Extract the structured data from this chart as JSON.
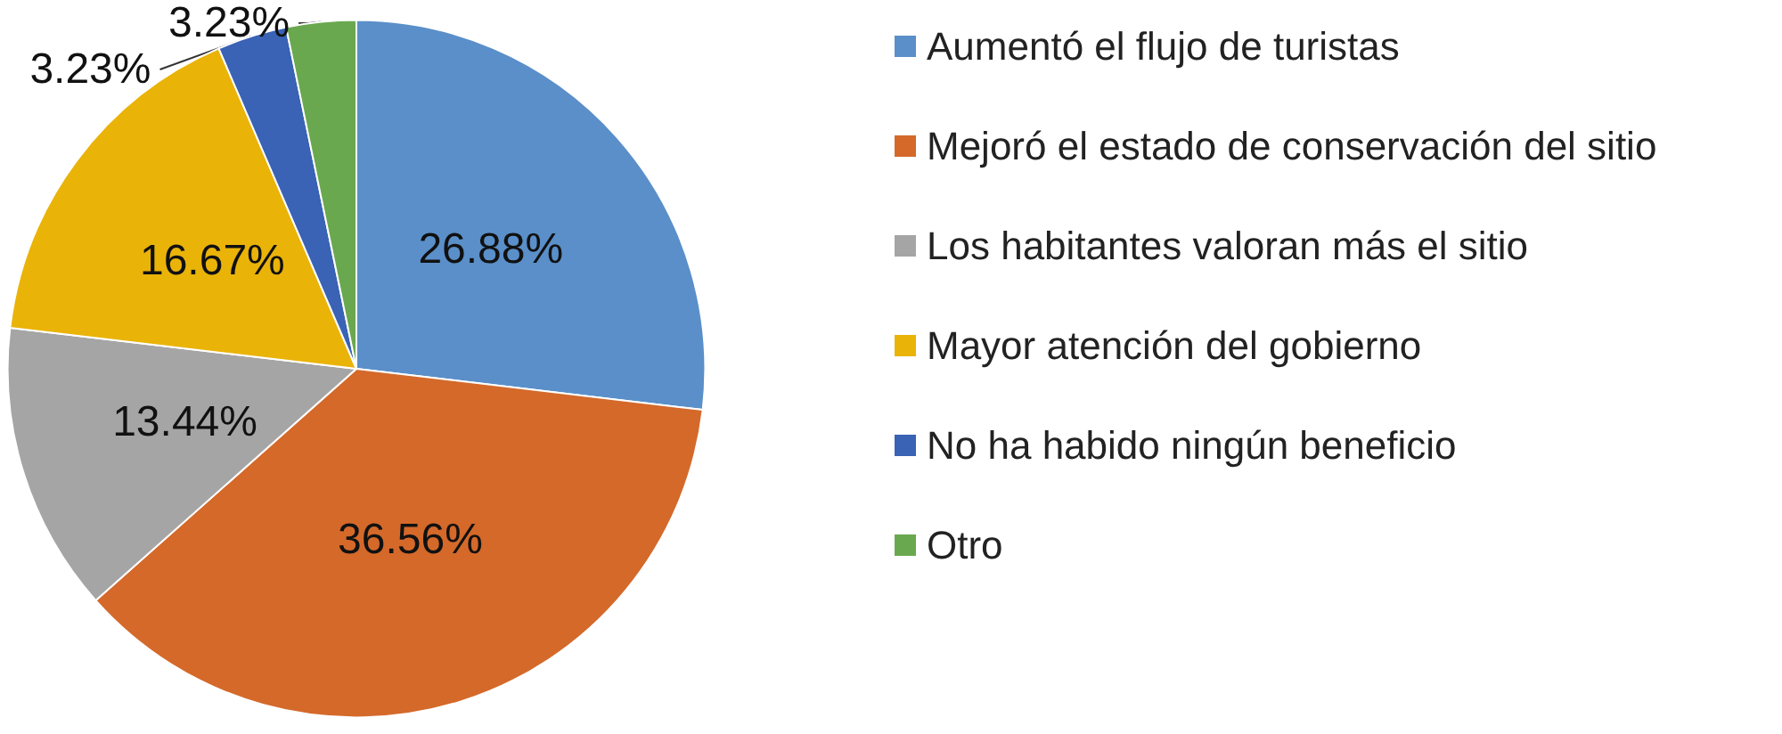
{
  "chart_data": {
    "type": "pie",
    "categories": [
      "Aumentó el flujo de turistas",
      "Mejoró el estado de conservación del sitio",
      "Los habitantes valoran más el sitio",
      "Mayor atención del gobierno",
      "No ha habido ningún beneficio",
      "Otro"
    ],
    "values": [
      26.88,
      36.56,
      13.44,
      16.67,
      3.23,
      3.23
    ],
    "value_labels": [
      "26.88%",
      "36.56%",
      "13.44%",
      "16.67%",
      "3.23%",
      "3.23%"
    ],
    "colors": [
      "#5a8fc9",
      "#d4692a",
      "#a5a5a5",
      "#eab308",
      "#3a62b5",
      "#6aa84f"
    ],
    "legend": "right"
  }
}
